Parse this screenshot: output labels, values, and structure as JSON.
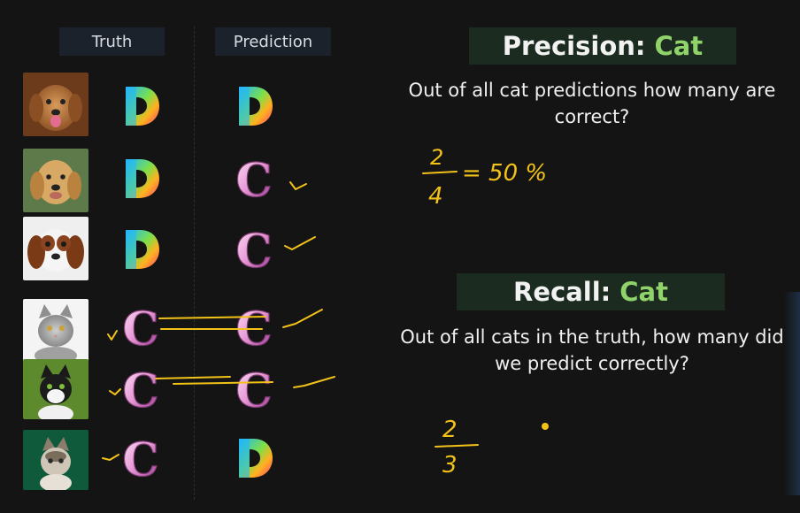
{
  "headers": {
    "truth": "Truth",
    "prediction": "Prediction"
  },
  "rows": [
    {
      "animal": "dog",
      "truth": "D",
      "prediction": "D"
    },
    {
      "animal": "dog",
      "truth": "D",
      "prediction": "C"
    },
    {
      "animal": "dog",
      "truth": "D",
      "prediction": "C"
    },
    {
      "animal": "cat",
      "truth": "C",
      "prediction": "C"
    },
    {
      "animal": "cat",
      "truth": "C",
      "prediction": "C"
    },
    {
      "animal": "cat",
      "truth": "C",
      "prediction": "D"
    }
  ],
  "precision": {
    "label": "Precision:",
    "class": "Cat",
    "question": "Out of all cat predictions how many are correct?",
    "handwritten": {
      "numerator": "2",
      "denominator": "4",
      "result": "= 50 %"
    }
  },
  "recall": {
    "label": "Recall:",
    "class": "Cat",
    "question": "Out of all cats in the truth, how many did we predict correctly?",
    "handwritten": {
      "numerator": "2",
      "denominator": "3"
    }
  },
  "colors": {
    "accent": "#8fd36a",
    "ink": "#f2c218",
    "pink": "#e9a9d9"
  }
}
